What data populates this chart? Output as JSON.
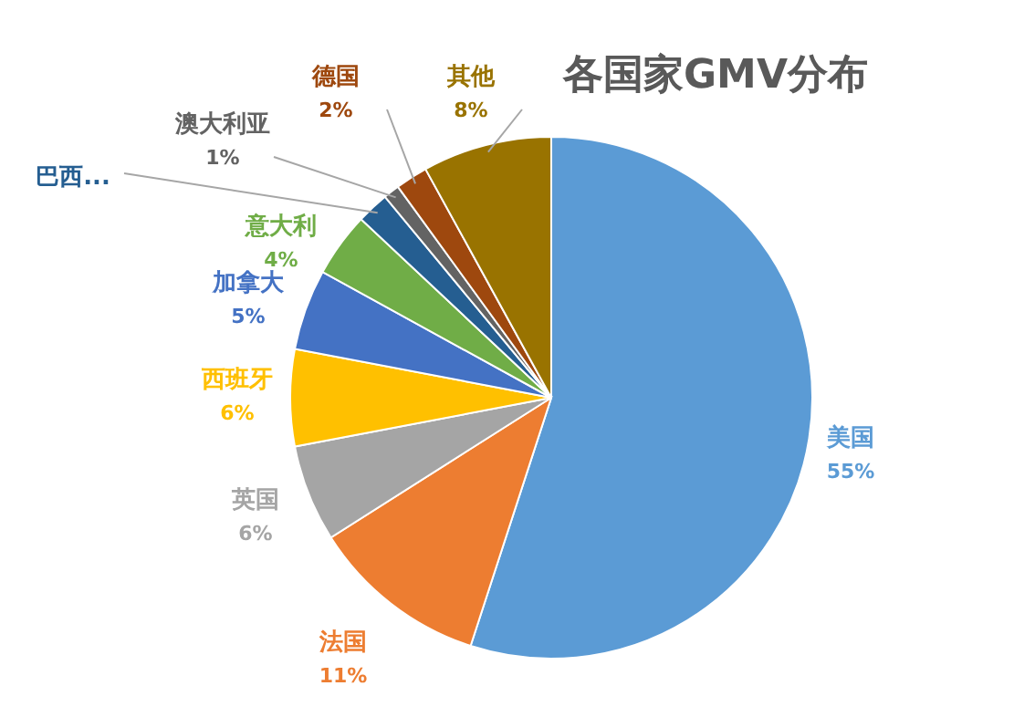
{
  "chart_data": {
    "type": "pie",
    "title": "各国家GMV分布",
    "categories": [
      "美国",
      "法国",
      "英国",
      "西班牙",
      "加拿大",
      "意大利",
      "巴西...",
      "澳大利亚",
      "德国",
      "其他"
    ],
    "values": [
      55,
      11,
      6,
      6,
      5,
      4,
      2,
      1,
      2,
      8
    ],
    "value_labels": [
      "55%",
      "11%",
      "6%",
      "6%",
      "5%",
      "4%",
      null,
      "1%",
      "2%",
      "8%"
    ],
    "colors": [
      "#5b9bd5",
      "#ed7d31",
      "#a5a5a5",
      "#ffc000",
      "#4472c4",
      "#70ad47",
      "#255e91",
      "#636363",
      "#9e480e",
      "#997300"
    ]
  }
}
